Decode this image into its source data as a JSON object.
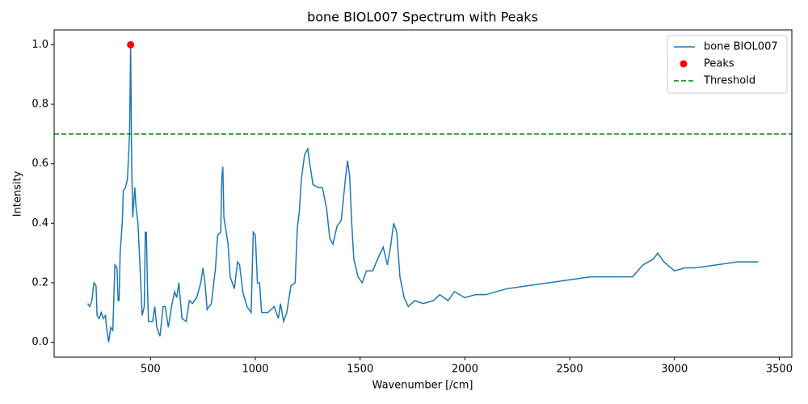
{
  "chart_data": {
    "type": "line",
    "title": "bone BIOL007 Spectrum with Peaks",
    "x_label": "Wavenumber [/cm]",
    "y_label": "Intensity",
    "xlim": [
      40,
      3560
    ],
    "ylim": [
      -0.05,
      1.05
    ],
    "xticks": [
      500,
      1000,
      1500,
      2000,
      2500,
      3000,
      3500
    ],
    "yticks": [
      {
        "value": 0,
        "label": "0.0"
      },
      {
        "value": 0.2,
        "label": "0.2"
      },
      {
        "value": 0.4,
        "label": "0.4"
      },
      {
        "value": 0.6,
        "label": "0.6"
      },
      {
        "value": 0.8,
        "label": "0.8"
      },
      {
        "value": 1,
        "label": "1.0"
      }
    ],
    "legend": "upper right",
    "series": [
      {
        "name": "bone BIOL007",
        "type": "line",
        "color": "#1f77b4",
        "x": [
          200,
          210,
          220,
          230,
          240,
          245,
          255,
          265,
          275,
          285,
          290,
          300,
          310,
          320,
          330,
          340,
          345,
          350,
          355,
          365,
          370,
          380,
          390,
          400,
          405,
          410,
          415,
          425,
          430,
          440,
          450,
          460,
          470,
          475,
          480,
          485,
          490,
          510,
          520,
          530,
          545,
          560,
          570,
          585,
          600,
          615,
          625,
          635,
          650,
          670,
          685,
          700,
          720,
          740,
          750,
          760,
          770,
          790,
          810,
          820,
          835,
          840,
          845,
          850,
          870,
          880,
          900,
          915,
          925,
          940,
          960,
          980,
          990,
          1000,
          1010,
          1020,
          1030,
          1060,
          1090,
          1110,
          1120,
          1135,
          1150,
          1170,
          1190,
          1200,
          1210,
          1220,
          1235,
          1250,
          1260,
          1275,
          1300,
          1320,
          1340,
          1355,
          1370,
          1390,
          1410,
          1430,
          1440,
          1450,
          1460,
          1470,
          1490,
          1510,
          1530,
          1560,
          1590,
          1610,
          1630,
          1645,
          1660,
          1675,
          1690,
          1710,
          1730,
          1760,
          1800,
          1850,
          1880,
          1920,
          1950,
          2000,
          2050,
          2100,
          2200,
          2300,
          2400,
          2500,
          2600,
          2700,
          2800,
          2850,
          2900,
          2920,
          2950,
          3000,
          3050,
          3100,
          3200,
          3300,
          3400
        ],
        "values": [
          0.13,
          0.12,
          0.14,
          0.2,
          0.19,
          0.09,
          0.08,
          0.1,
          0.08,
          0.09,
          0.05,
          0,
          0.05,
          0.04,
          0.26,
          0.25,
          0.14,
          0.14,
          0.3,
          0.4,
          0.51,
          0.52,
          0.55,
          0.7,
          1,
          0.6,
          0.42,
          0.52,
          0.46,
          0.4,
          0.25,
          0.09,
          0.12,
          0.37,
          0.37,
          0.2,
          0.07,
          0.07,
          0.12,
          0.05,
          0.02,
          0.12,
          0.12,
          0.05,
          0.12,
          0.17,
          0.15,
          0.2,
          0.08,
          0.07,
          0.14,
          0.13,
          0.15,
          0.2,
          0.25,
          0.2,
          0.11,
          0.13,
          0.25,
          0.36,
          0.37,
          0.55,
          0.59,
          0.42,
          0.33,
          0.22,
          0.18,
          0.27,
          0.26,
          0.17,
          0.12,
          0.1,
          0.37,
          0.36,
          0.2,
          0.2,
          0.1,
          0.1,
          0.12,
          0.08,
          0.13,
          0.07,
          0.1,
          0.19,
          0.2,
          0.38,
          0.44,
          0.55,
          0.63,
          0.65,
          0.6,
          0.53,
          0.52,
          0.52,
          0.45,
          0.35,
          0.33,
          0.39,
          0.41,
          0.55,
          0.61,
          0.56,
          0.4,
          0.28,
          0.22,
          0.2,
          0.24,
          0.24,
          0.29,
          0.32,
          0.26,
          0.32,
          0.4,
          0.37,
          0.22,
          0.15,
          0.12,
          0.14,
          0.13,
          0.14,
          0.16,
          0.14,
          0.17,
          0.15,
          0.16,
          0.16,
          0.18,
          0.19,
          0.2,
          0.21,
          0.22,
          0.22,
          0.22,
          0.26,
          0.28,
          0.3,
          0.27,
          0.24,
          0.25,
          0.25,
          0.26,
          0.27,
          0.27
        ]
      },
      {
        "name": "Peaks",
        "type": "scatter",
        "color": "#ff0000",
        "x": [
          405
        ],
        "values": [
          1
        ]
      }
    ],
    "threshold": {
      "name": "Threshold",
      "value": 0.7,
      "color": "#008000"
    }
  }
}
